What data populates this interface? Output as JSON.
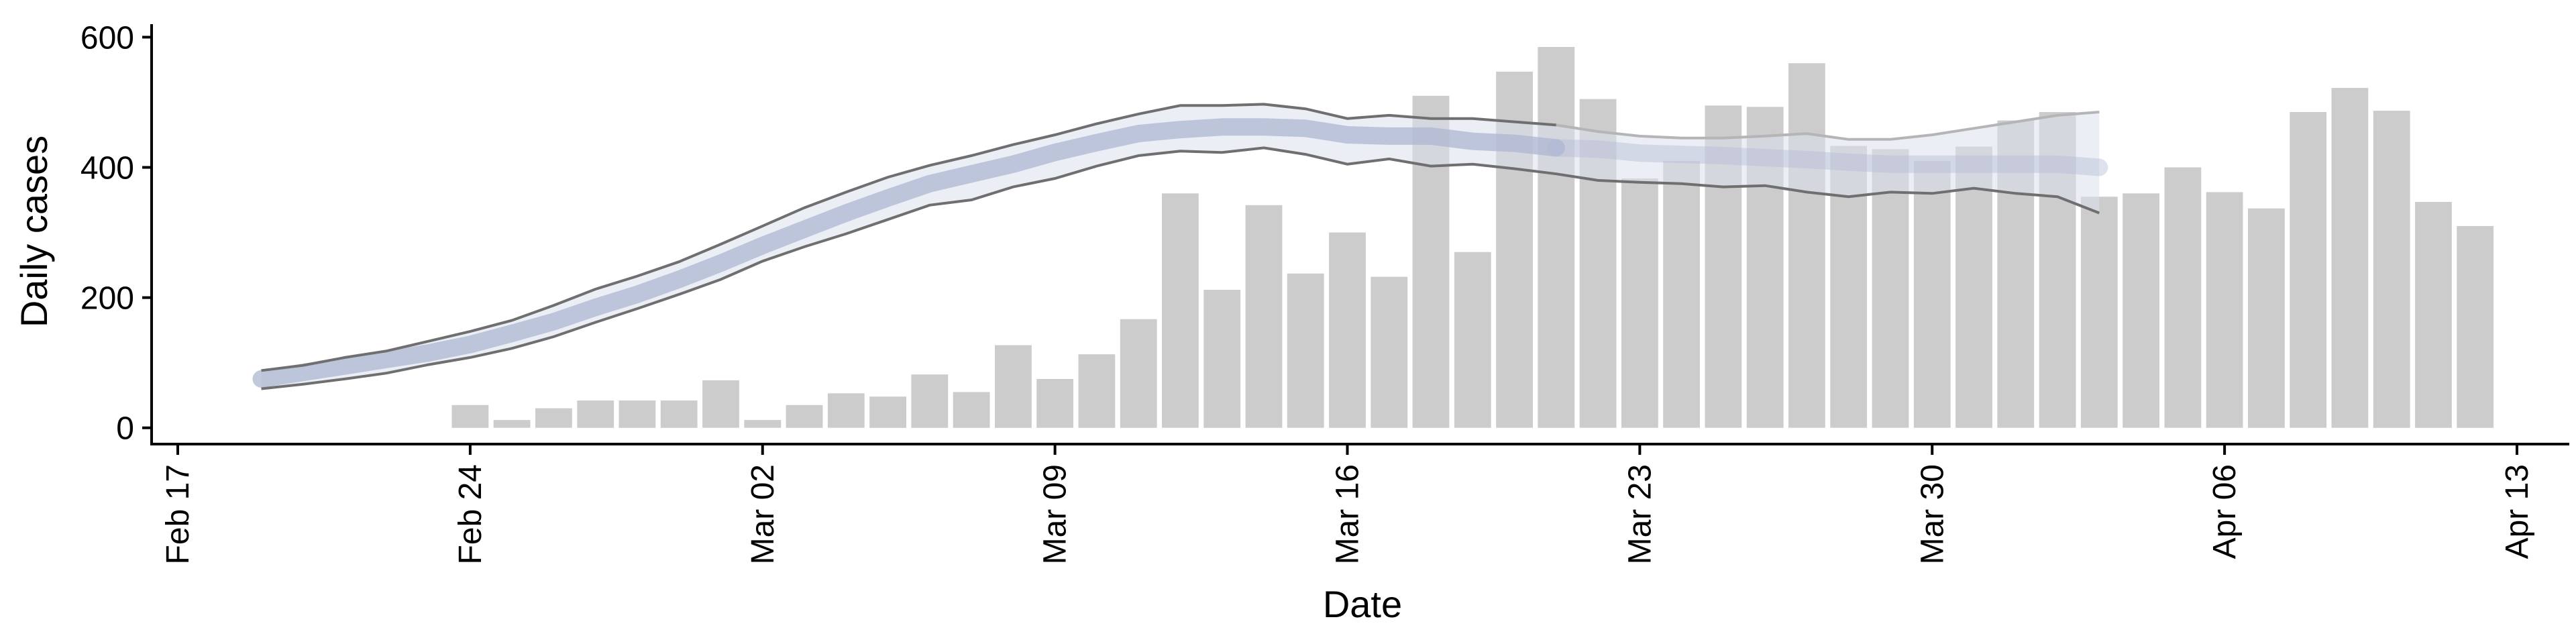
{
  "chart_data": {
    "type": "bar",
    "xlabel": "Date",
    "ylabel": "Daily cases",
    "ylim": [
      -25,
      620
    ],
    "xlim": [
      "2020-02-17",
      "2020-04-14"
    ],
    "yticks": [
      0,
      200,
      400,
      600
    ],
    "xticks": [
      {
        "date": "2020-02-17",
        "label": "Feb 17"
      },
      {
        "date": "2020-02-24",
        "label": "Feb 24"
      },
      {
        "date": "2020-03-02",
        "label": "Mar 02"
      },
      {
        "date": "2020-03-09",
        "label": "Mar 09"
      },
      {
        "date": "2020-03-16",
        "label": "Mar 16"
      },
      {
        "date": "2020-03-23",
        "label": "Mar 23"
      },
      {
        "date": "2020-03-30",
        "label": "Mar 30"
      },
      {
        "date": "2020-04-06",
        "label": "Apr 06"
      },
      {
        "date": "2020-04-13",
        "label": "Apr 13"
      }
    ],
    "bars": {
      "dates": [
        "2020-02-24",
        "2020-02-25",
        "2020-02-26",
        "2020-02-27",
        "2020-02-28",
        "2020-02-29",
        "2020-03-01",
        "2020-03-02",
        "2020-03-03",
        "2020-03-04",
        "2020-03-05",
        "2020-03-06",
        "2020-03-07",
        "2020-03-08",
        "2020-03-09",
        "2020-03-10",
        "2020-03-11",
        "2020-03-12",
        "2020-03-13",
        "2020-03-14",
        "2020-03-15",
        "2020-03-16",
        "2020-03-17",
        "2020-03-18",
        "2020-03-19",
        "2020-03-20",
        "2020-03-21",
        "2020-03-22",
        "2020-03-23",
        "2020-03-24",
        "2020-03-25",
        "2020-03-26",
        "2020-03-27",
        "2020-03-28",
        "2020-03-29",
        "2020-03-30",
        "2020-03-31",
        "2020-04-01",
        "2020-04-02",
        "2020-04-03",
        "2020-04-04",
        "2020-04-05",
        "2020-04-06",
        "2020-04-07",
        "2020-04-08",
        "2020-04-09",
        "2020-04-10",
        "2020-04-11",
        "2020-04-12"
      ],
      "values": [
        35,
        12,
        30,
        42,
        42,
        42,
        73,
        12,
        35,
        53,
        48,
        82,
        55,
        127,
        75,
        113,
        167,
        360,
        212,
        342,
        237,
        300,
        232,
        510,
        270,
        547,
        585,
        505,
        383,
        410,
        495,
        493,
        560,
        433,
        428,
        410,
        432,
        472,
        485,
        355,
        360,
        400,
        362,
        337,
        485,
        522,
        487,
        347,
        310
      ]
    },
    "estimate": {
      "dates": [
        "2020-02-19",
        "2020-02-20",
        "2020-02-21",
        "2020-02-22",
        "2020-02-23",
        "2020-02-24",
        "2020-02-25",
        "2020-02-26",
        "2020-02-27",
        "2020-02-28",
        "2020-02-29",
        "2020-03-01",
        "2020-03-02",
        "2020-03-03",
        "2020-03-04",
        "2020-03-05",
        "2020-03-06",
        "2020-03-07",
        "2020-03-08",
        "2020-03-09",
        "2020-03-10",
        "2020-03-11",
        "2020-03-12",
        "2020-03-13",
        "2020-03-14",
        "2020-03-15",
        "2020-03-16",
        "2020-03-17",
        "2020-03-18",
        "2020-03-19",
        "2020-03-20",
        "2020-03-21",
        "2020-03-22",
        "2020-03-23",
        "2020-03-24",
        "2020-03-25",
        "2020-03-26",
        "2020-03-27",
        "2020-03-28",
        "2020-03-29",
        "2020-03-30",
        "2020-03-31",
        "2020-04-01",
        "2020-04-02",
        "2020-04-03"
      ],
      "median": [
        75,
        85,
        95,
        105,
        115,
        128,
        145,
        163,
        185,
        205,
        228,
        253,
        280,
        305,
        330,
        353,
        375,
        390,
        405,
        423,
        438,
        452,
        458,
        462,
        462,
        460,
        450,
        448,
        448,
        440,
        437,
        430,
        428,
        422,
        420,
        418,
        415,
        412,
        408,
        405,
        405,
        405,
        405,
        405,
        400
      ],
      "upper": [
        88,
        96,
        108,
        118,
        133,
        148,
        165,
        188,
        213,
        233,
        255,
        282,
        310,
        338,
        362,
        385,
        403,
        418,
        435,
        450,
        467,
        482,
        495,
        495,
        497,
        490,
        475,
        480,
        475,
        475,
        470,
        465,
        455,
        448,
        445,
        445,
        448,
        452,
        443,
        443,
        450,
        460,
        470,
        480,
        485
      ],
      "lower": [
        60,
        67,
        75,
        84,
        97,
        108,
        122,
        140,
        162,
        183,
        205,
        228,
        256,
        278,
        298,
        320,
        342,
        350,
        370,
        383,
        402,
        418,
        425,
        423,
        430,
        420,
        405,
        413,
        402,
        405,
        398,
        390,
        380,
        377,
        375,
        370,
        372,
        362,
        355,
        362,
        360,
        368,
        360,
        355,
        330
      ]
    }
  }
}
